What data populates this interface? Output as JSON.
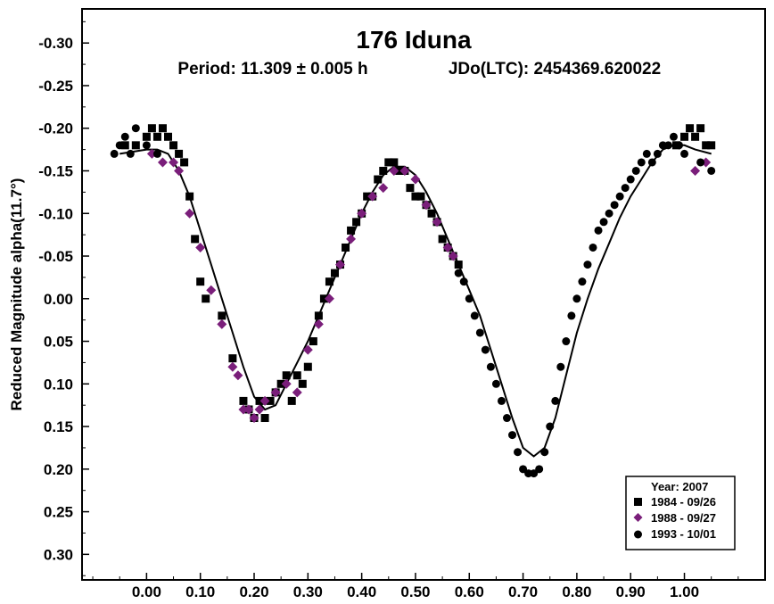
{
  "chart_data": {
    "type": "scatter",
    "title": "176 Iduna",
    "subtitle_left": "Period: 11.309 ± 0.005 h",
    "subtitle_right": "JDo(LTC): 2454369.620022",
    "xlabel": "",
    "ylabel": "Reduced Magnitude alpha(11.7°)",
    "xlim": [
      -0.12,
      1.15
    ],
    "ylim": [
      0.33,
      -0.34
    ],
    "y_inverted": true,
    "xticks": [
      "0.00",
      "0.10",
      "0.20",
      "0.30",
      "0.40",
      "0.50",
      "0.60",
      "0.70",
      "0.80",
      "0.90",
      "1.00"
    ],
    "yticks": [
      "-0.30",
      "-0.25",
      "-0.20",
      "-0.15",
      "-0.10",
      "-0.05",
      "0.00",
      "0.05",
      "0.10",
      "0.15",
      "0.20",
      "0.25",
      "0.30"
    ],
    "grid": false,
    "legend": {
      "title": "Year: 2007",
      "placement": "bottom-right",
      "entries": [
        "1984 - 09/26",
        "1988 - 09/27",
        "1993 - 10/01"
      ]
    },
    "colors": {
      "series_1984": "#000000",
      "series_1988": "#7a1e7a",
      "series_1993": "#000000",
      "fit": "#000000"
    },
    "fit_curve": {
      "x": [
        -0.05,
        0.0,
        0.02,
        0.04,
        0.06,
        0.08,
        0.1,
        0.12,
        0.14,
        0.16,
        0.18,
        0.2,
        0.22,
        0.24,
        0.26,
        0.28,
        0.3,
        0.32,
        0.34,
        0.36,
        0.38,
        0.4,
        0.42,
        0.44,
        0.46,
        0.48,
        0.5,
        0.52,
        0.54,
        0.56,
        0.58,
        0.6,
        0.62,
        0.64,
        0.66,
        0.68,
        0.7,
        0.72,
        0.74,
        0.76,
        0.78,
        0.8,
        0.82,
        0.84,
        0.86,
        0.88,
        0.9,
        0.92,
        0.94,
        0.96,
        0.98,
        1.0,
        1.02,
        1.05
      ],
      "y": [
        -0.17,
        -0.175,
        -0.175,
        -0.17,
        -0.15,
        -0.12,
        -0.08,
        -0.04,
        0.0,
        0.04,
        0.08,
        0.115,
        0.13,
        0.125,
        0.1,
        0.075,
        0.05,
        0.02,
        -0.01,
        -0.04,
        -0.07,
        -0.1,
        -0.125,
        -0.145,
        -0.155,
        -0.155,
        -0.145,
        -0.125,
        -0.1,
        -0.07,
        -0.04,
        -0.01,
        0.02,
        0.06,
        0.1,
        0.14,
        0.175,
        0.185,
        0.175,
        0.14,
        0.09,
        0.04,
        0.0,
        -0.035,
        -0.065,
        -0.095,
        -0.12,
        -0.14,
        -0.16,
        -0.175,
        -0.18,
        -0.18,
        -0.175,
        -0.17
      ]
    },
    "series": [
      {
        "name": "1984 - 09/26",
        "marker": "square",
        "x": [
          -0.04,
          -0.02,
          0.0,
          0.01,
          0.02,
          0.03,
          0.04,
          0.05,
          0.06,
          0.07,
          0.08,
          0.09,
          0.1,
          0.11,
          0.14,
          0.16,
          0.18,
          0.19,
          0.2,
          0.21,
          0.22,
          0.23,
          0.24,
          0.25,
          0.26,
          0.27,
          0.28,
          0.29,
          0.3,
          0.31,
          0.32,
          0.33,
          0.34,
          0.35,
          0.36,
          0.37,
          0.38,
          0.39,
          0.4,
          0.41,
          0.42,
          0.43,
          0.44,
          0.45,
          0.46,
          0.47,
          0.48,
          0.49,
          0.5,
          0.51,
          0.52,
          0.53,
          0.54,
          0.55,
          0.56,
          0.57,
          0.58,
          0.985,
          1.0,
          1.01,
          1.02,
          1.03,
          1.04,
          1.05
        ],
        "y": [
          -0.18,
          -0.18,
          -0.19,
          -0.2,
          -0.19,
          -0.2,
          -0.19,
          -0.18,
          -0.17,
          -0.16,
          -0.12,
          -0.07,
          -0.02,
          0.0,
          0.02,
          0.07,
          0.12,
          0.13,
          0.14,
          0.12,
          0.14,
          0.12,
          0.11,
          0.1,
          0.09,
          0.12,
          0.09,
          0.1,
          0.08,
          0.05,
          0.02,
          0.0,
          -0.02,
          -0.03,
          -0.04,
          -0.06,
          -0.08,
          -0.09,
          -0.1,
          -0.12,
          -0.12,
          -0.14,
          -0.15,
          -0.16,
          -0.16,
          -0.15,
          -0.15,
          -0.13,
          -0.12,
          -0.12,
          -0.11,
          -0.1,
          -0.09,
          -0.07,
          -0.06,
          -0.05,
          -0.04,
          -0.18,
          -0.19,
          -0.2,
          -0.19,
          -0.2,
          -0.18,
          -0.18
        ]
      },
      {
        "name": "1988 - 09/27",
        "marker": "diamond",
        "x": [
          0.01,
          0.03,
          0.05,
          0.06,
          0.08,
          0.1,
          0.12,
          0.14,
          0.16,
          0.17,
          0.18,
          0.19,
          0.2,
          0.21,
          0.22,
          0.24,
          0.26,
          0.28,
          0.3,
          0.32,
          0.34,
          0.36,
          0.38,
          0.4,
          0.42,
          0.44,
          0.46,
          0.48,
          0.5,
          0.52,
          0.54,
          0.56,
          0.57,
          1.02,
          1.04
        ],
        "y": [
          -0.17,
          -0.16,
          -0.16,
          -0.15,
          -0.1,
          -0.06,
          -0.01,
          0.03,
          0.08,
          0.09,
          0.13,
          0.13,
          0.14,
          0.13,
          0.12,
          0.11,
          0.1,
          0.11,
          0.06,
          0.03,
          0.0,
          -0.04,
          -0.07,
          -0.1,
          -0.12,
          -0.13,
          -0.15,
          -0.15,
          -0.14,
          -0.11,
          -0.09,
          -0.06,
          -0.05,
          -0.15,
          -0.16
        ]
      },
      {
        "name": "1993 - 10/01",
        "marker": "circle",
        "x": [
          -0.06,
          -0.05,
          -0.04,
          -0.03,
          -0.02,
          0.0,
          0.02,
          0.58,
          0.59,
          0.6,
          0.61,
          0.62,
          0.63,
          0.64,
          0.65,
          0.66,
          0.67,
          0.68,
          0.69,
          0.7,
          0.71,
          0.72,
          0.73,
          0.74,
          0.75,
          0.76,
          0.77,
          0.78,
          0.79,
          0.8,
          0.81,
          0.82,
          0.83,
          0.84,
          0.85,
          0.86,
          0.87,
          0.88,
          0.89,
          0.9,
          0.91,
          0.92,
          0.93,
          0.94,
          0.95,
          0.96,
          0.97,
          0.98,
          0.99,
          1.0,
          1.03,
          1.05
        ],
        "y": [
          -0.17,
          -0.18,
          -0.19,
          -0.17,
          -0.2,
          -0.18,
          -0.17,
          -0.03,
          -0.02,
          0.0,
          0.02,
          0.04,
          0.06,
          0.08,
          0.1,
          0.12,
          0.14,
          0.16,
          0.18,
          0.2,
          0.205,
          0.205,
          0.2,
          0.18,
          0.15,
          0.12,
          0.08,
          0.05,
          0.02,
          0.0,
          -0.02,
          -0.04,
          -0.06,
          -0.08,
          -0.09,
          -0.1,
          -0.11,
          -0.12,
          -0.13,
          -0.14,
          -0.15,
          -0.16,
          -0.17,
          -0.16,
          -0.17,
          -0.18,
          -0.18,
          -0.19,
          -0.18,
          -0.17,
          -0.16,
          -0.15
        ]
      }
    ]
  }
}
